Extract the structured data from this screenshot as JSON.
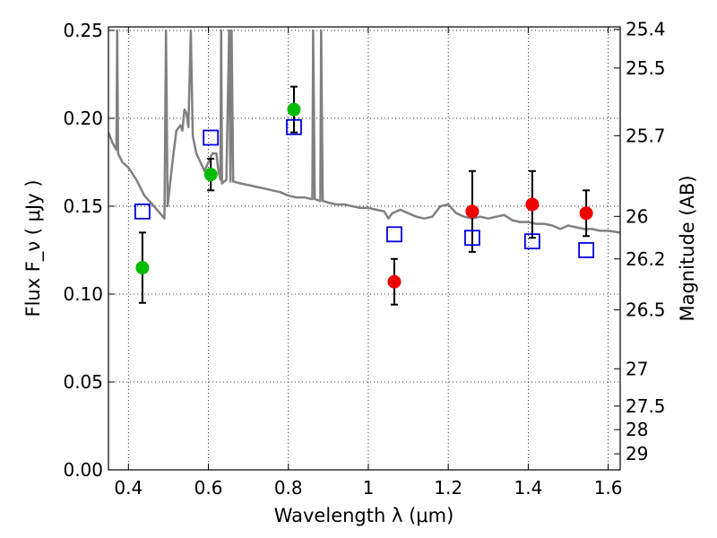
{
  "chart_data": {
    "type": "scatter",
    "xlabel": "Wavelength  λ (μm)",
    "ylabel": "Flux  F_ν  ( μJy )",
    "ylabel_right": "Magnitude (AB)",
    "xlim": [
      0.35,
      1.63
    ],
    "ylim": [
      0.0,
      0.252
    ],
    "grid": true,
    "x_ticks": [
      0.4,
      0.6,
      0.8,
      1.0,
      1.2,
      1.4,
      1.6
    ],
    "x_tick_labels": [
      "0.4",
      "0.6",
      "0.8",
      "1",
      "1.2",
      "1.4",
      "1.6"
    ],
    "y_ticks": [
      0.0,
      0.05,
      0.1,
      0.15,
      0.2,
      0.25
    ],
    "y_tick_labels": [
      "0.00",
      "0.05",
      "0.10",
      "0.15",
      "0.20",
      "0.25"
    ],
    "right_ticks": [
      {
        "label": "25.4",
        "flux": 0.2506
      },
      {
        "label": "25.5",
        "flux": 0.2286
      },
      {
        "label": "25.7",
        "flux": 0.1901
      },
      {
        "label": "26",
        "flux": 0.1442
      },
      {
        "label": "26.2",
        "flux": 0.12
      },
      {
        "label": "26.5",
        "flux": 0.091
      },
      {
        "label": "27",
        "flux": 0.0575
      },
      {
        "label": "27.5",
        "flux": 0.0363
      },
      {
        "label": "28",
        "flux": 0.0229
      },
      {
        "label": "29",
        "flux": 0.0091
      }
    ],
    "series": [
      {
        "marker": "circle",
        "color": "#00bb00",
        "points": [
          {
            "x": 0.435,
            "y": 0.115,
            "err": 0.02
          },
          {
            "x": 0.606,
            "y": 0.168,
            "err": 0.009
          },
          {
            "x": 0.814,
            "y": 0.205,
            "err": 0.013
          }
        ]
      },
      {
        "marker": "circle",
        "color": "#ee0000",
        "points": [
          {
            "x": 1.065,
            "y": 0.107,
            "err": 0.013
          },
          {
            "x": 1.26,
            "y": 0.147,
            "err": 0.023
          },
          {
            "x": 1.41,
            "y": 0.151,
            "err": 0.019
          },
          {
            "x": 1.545,
            "y": 0.146,
            "err": 0.013
          }
        ]
      },
      {
        "marker": "open-square",
        "color": "#0000dd",
        "points": [
          {
            "x": 0.435,
            "y": 0.147
          },
          {
            "x": 0.606,
            "y": 0.189
          },
          {
            "x": 0.814,
            "y": 0.195
          },
          {
            "x": 1.065,
            "y": 0.134
          },
          {
            "x": 1.26,
            "y": 0.132
          },
          {
            "x": 1.41,
            "y": 0.13
          },
          {
            "x": 1.545,
            "y": 0.125
          }
        ]
      }
    ],
    "model_spectrum": {
      "color": "#808080",
      "points": [
        [
          0.35,
          0.192
        ],
        [
          0.36,
          0.186
        ],
        [
          0.37,
          0.182
        ],
        [
          0.372,
          0.25
        ],
        [
          0.374,
          0.18
        ],
        [
          0.385,
          0.175
        ],
        [
          0.4,
          0.172
        ],
        [
          0.42,
          0.165
        ],
        [
          0.44,
          0.156
        ],
        [
          0.46,
          0.151
        ],
        [
          0.475,
          0.147
        ],
        [
          0.49,
          0.143
        ],
        [
          0.494,
          0.25
        ],
        [
          0.498,
          0.15
        ],
        [
          0.51,
          0.175
        ],
        [
          0.52,
          0.193
        ],
        [
          0.53,
          0.196
        ],
        [
          0.535,
          0.193
        ],
        [
          0.54,
          0.205
        ],
        [
          0.545,
          0.203
        ],
        [
          0.55,
          0.195
        ],
        [
          0.556,
          0.25
        ],
        [
          0.561,
          0.19
        ],
        [
          0.57,
          0.18
        ],
        [
          0.58,
          0.175
        ],
        [
          0.59,
          0.17
        ],
        [
          0.6,
          0.175
        ],
        [
          0.61,
          0.18
        ],
        [
          0.62,
          0.18
        ],
        [
          0.625,
          0.17
        ],
        [
          0.63,
          0.165
        ],
        [
          0.632,
          0.25
        ],
        [
          0.634,
          0.163
        ],
        [
          0.645,
          0.165
        ],
        [
          0.652,
          0.25
        ],
        [
          0.655,
          0.164
        ],
        [
          0.658,
          0.25
        ],
        [
          0.662,
          0.164
        ],
        [
          0.68,
          0.163
        ],
        [
          0.7,
          0.162
        ],
        [
          0.72,
          0.161
        ],
        [
          0.74,
          0.16
        ],
        [
          0.76,
          0.159
        ],
        [
          0.78,
          0.158
        ],
        [
          0.8,
          0.156
        ],
        [
          0.82,
          0.155
        ],
        [
          0.84,
          0.155
        ],
        [
          0.86,
          0.154
        ],
        [
          0.862,
          0.25
        ],
        [
          0.866,
          0.154
        ],
        [
          0.88,
          0.153
        ],
        [
          0.882,
          0.25
        ],
        [
          0.886,
          0.153
        ],
        [
          0.9,
          0.152
        ],
        [
          0.92,
          0.151
        ],
        [
          0.94,
          0.151
        ],
        [
          0.96,
          0.15
        ],
        [
          0.98,
          0.149
        ],
        [
          1.0,
          0.149
        ],
        [
          1.02,
          0.148
        ],
        [
          1.04,
          0.147
        ],
        [
          1.05,
          0.143
        ],
        [
          1.06,
          0.146
        ],
        [
          1.08,
          0.148
        ],
        [
          1.1,
          0.146
        ],
        [
          1.12,
          0.144
        ],
        [
          1.14,
          0.143
        ],
        [
          1.16,
          0.144
        ],
        [
          1.18,
          0.15
        ],
        [
          1.2,
          0.151
        ],
        [
          1.22,
          0.146
        ],
        [
          1.24,
          0.144
        ],
        [
          1.26,
          0.143
        ],
        [
          1.28,
          0.144
        ],
        [
          1.3,
          0.143
        ],
        [
          1.32,
          0.144
        ],
        [
          1.34,
          0.145
        ],
        [
          1.36,
          0.142
        ],
        [
          1.38,
          0.141
        ],
        [
          1.4,
          0.141
        ],
        [
          1.42,
          0.14
        ],
        [
          1.44,
          0.14
        ],
        [
          1.46,
          0.139
        ],
        [
          1.48,
          0.137
        ],
        [
          1.5,
          0.139
        ],
        [
          1.52,
          0.138
        ],
        [
          1.54,
          0.137
        ],
        [
          1.56,
          0.137
        ],
        [
          1.58,
          0.136
        ],
        [
          1.6,
          0.136
        ],
        [
          1.63,
          0.135
        ]
      ]
    }
  }
}
